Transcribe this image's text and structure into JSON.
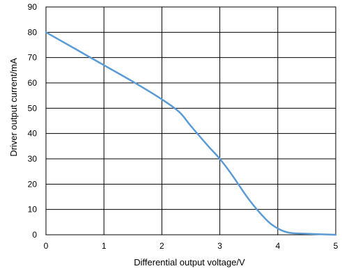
{
  "chart_data": {
    "type": "line",
    "xlabel": "Differential output voltage/V",
    "ylabel": "Driver output current/mA",
    "xlim": [
      0,
      5
    ],
    "ylim": [
      0,
      90
    ],
    "xticks": [
      0,
      1,
      2,
      3,
      4,
      5
    ],
    "yticks": [
      0,
      10,
      20,
      30,
      40,
      50,
      60,
      70,
      80,
      90
    ],
    "grid": true,
    "legend": "none",
    "colors": {
      "line": "#5B9BD5",
      "grid": "#000000",
      "frame": "#000000"
    },
    "series": [
      {
        "x": [
          0,
          0.5,
          1.0,
          1.5,
          2.0,
          2.3,
          2.5,
          2.8,
          3.0,
          3.2,
          3.5,
          3.8,
          4.0,
          4.2,
          4.5,
          5.0
        ],
        "y": [
          80,
          73.5,
          67,
          60.5,
          53.5,
          48.5,
          43,
          35,
          30,
          24,
          14,
          6,
          2.5,
          0.8,
          0.4,
          0
        ]
      }
    ]
  }
}
